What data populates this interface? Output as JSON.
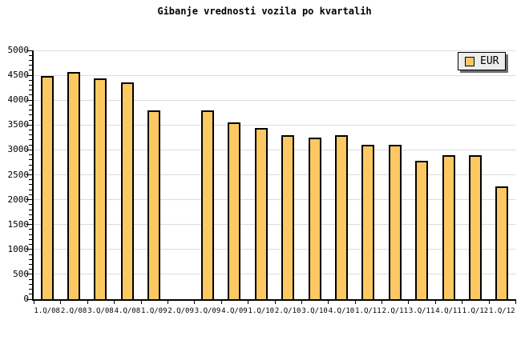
{
  "figure": {
    "title": "Gibanje vrednosti vozila po kvartalih",
    "legend": {
      "label": "EUR"
    }
  },
  "colors": {
    "background": "#ffffff",
    "bar_fill": "#FCC862",
    "bar_border": "#000000",
    "grid": "#DCDCDC",
    "axis": "#000000",
    "text": "#000000",
    "legend_bg": "#EDEDED",
    "legend_shadow": "#6E6E6E"
  },
  "chart_data": {
    "type": "bar",
    "title": "Gibanje vrednosti vozila po kvartalih",
    "categories": [
      "1.Q/08",
      "2.Q/08",
      "3.Q/08",
      "4.Q/08",
      "1.Q/09",
      "2.Q/09",
      "3.Q/09",
      "4.Q/09",
      "1.Q/10",
      "2.Q/10",
      "3.Q/10",
      "4.Q/10",
      "1.Q/11",
      "2.Q/11",
      "3.Q/11",
      "4.Q/11",
      "1.Q/12",
      "1.Q/12"
    ],
    "series": [
      {
        "name": "EUR",
        "values": [
          4490,
          4560,
          4430,
          4360,
          3800,
          null,
          3800,
          3550,
          3440,
          3290,
          3240,
          3290,
          3110,
          3110,
          2780,
          2900,
          2900,
          2270
        ]
      }
    ],
    "xlabel": "",
    "ylabel": "",
    "ylim": [
      0,
      5000
    ],
    "yticks": [
      0,
      500,
      1000,
      1500,
      2000,
      2500,
      3000,
      3500,
      4000,
      4500,
      5000
    ],
    "ytick_minor_step": 100,
    "grid": "horizontal-major",
    "legend_position": "top-right",
    "legend_entries": [
      "EUR"
    ]
  }
}
